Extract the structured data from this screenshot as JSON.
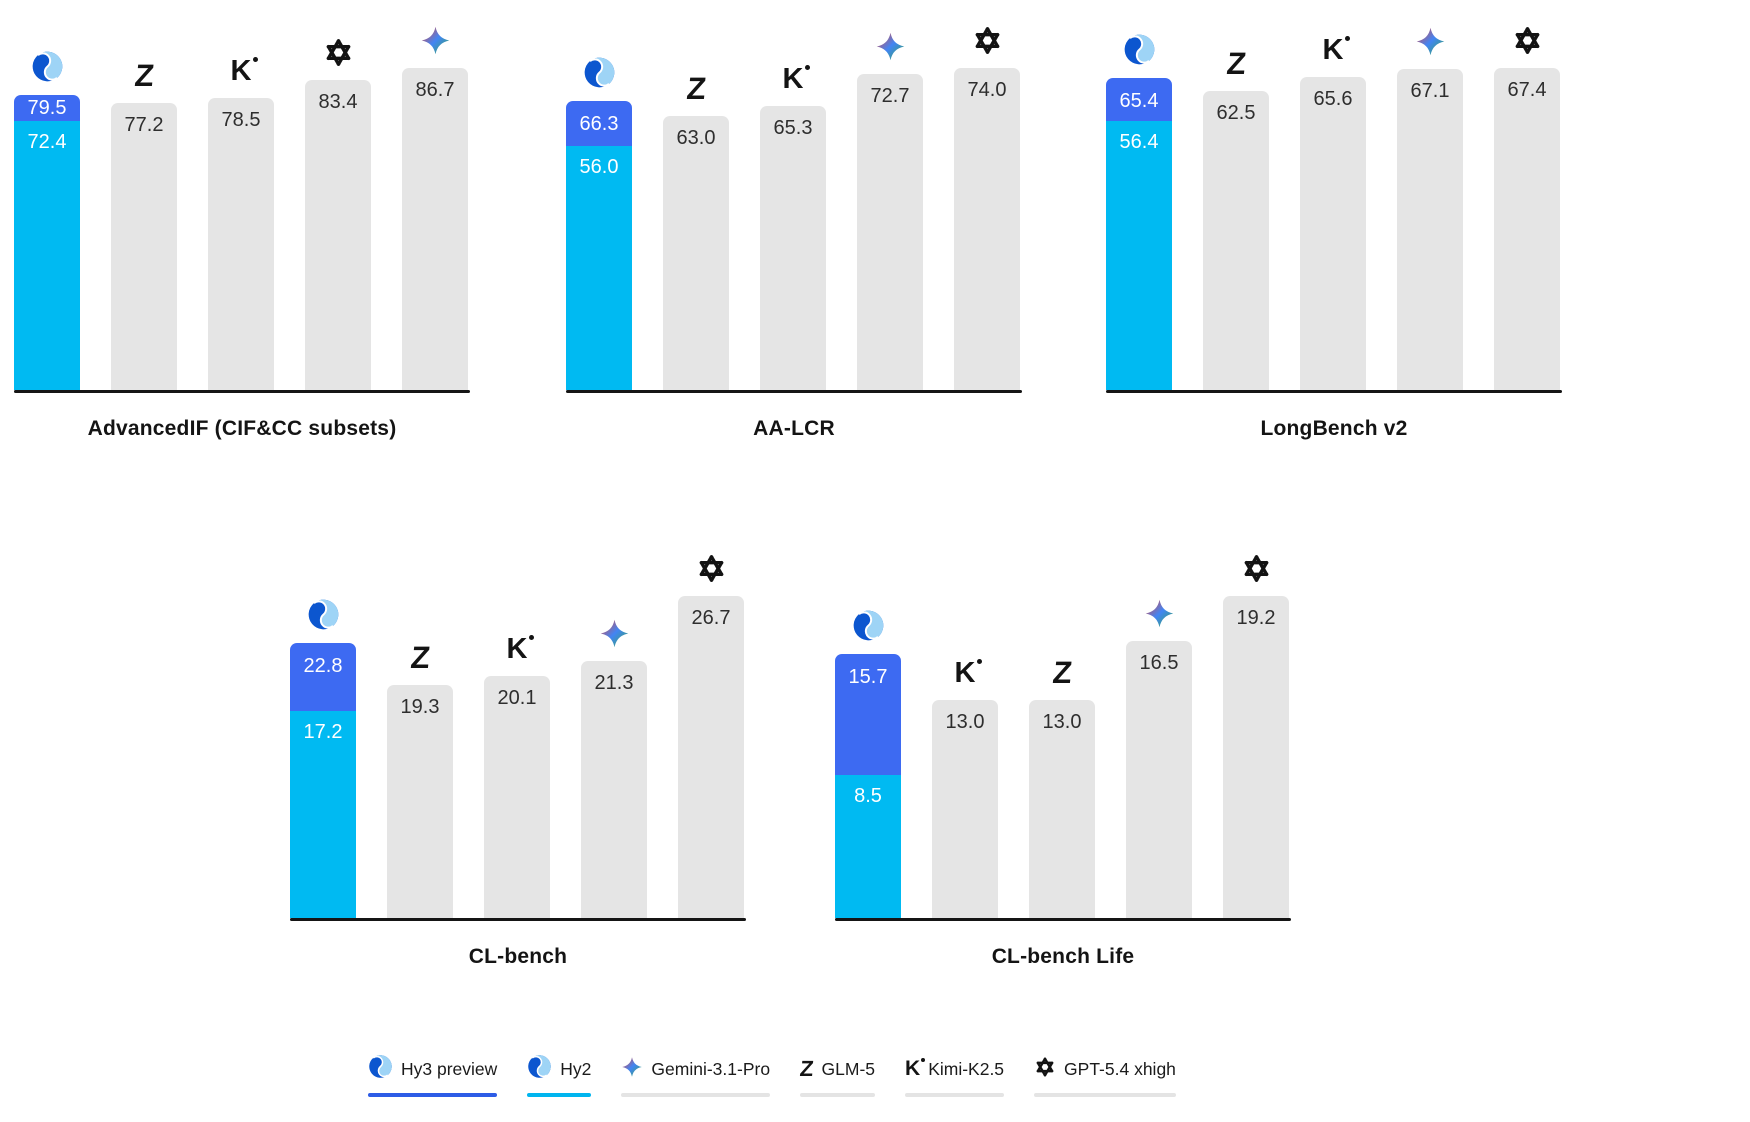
{
  "colors": {
    "hy3_blue": "#3D6AF2",
    "hy2_cyan": "#00BAF2",
    "bar_gray": "#E5E5E5",
    "axis_black": "#151515",
    "label_dark": "#2E2E2E",
    "label_light": "#FFFFFF",
    "legend_hy3_underline": "#2D5CE6",
    "legend_hy2_underline": "#00B5EF",
    "legend_neutral_underline": "#E4E4E4"
  },
  "chart_data": [
    {
      "type": "bar",
      "row": 1,
      "title": "AdvancedIF (CIF&CC subsets)",
      "xlabel": "",
      "ylabel": "",
      "ylim": [
        0,
        86.7
      ],
      "grid": false,
      "legend_position": "bottom",
      "bars": [
        {
          "kind": "stacked",
          "icon": "hy-logo",
          "top": {
            "model": "Hy3 preview",
            "value": 79.5,
            "display": "79.5"
          },
          "bottom": {
            "model": "Hy2",
            "value": 72.4,
            "display": "72.4"
          }
        },
        {
          "kind": "single",
          "icon": "glm-z-icon",
          "model": "GLM-5",
          "value": 77.2,
          "display": "77.2"
        },
        {
          "kind": "single",
          "icon": "kimi-k-icon",
          "model": "Kimi-K2.5",
          "value": 78.5,
          "display": "78.5"
        },
        {
          "kind": "single",
          "icon": "openai-icon",
          "model": "GPT-5.4 xhigh",
          "value": 83.4,
          "display": "83.4"
        },
        {
          "kind": "single",
          "icon": "gemini-sparkle-icon",
          "model": "Gemini-3.1-Pro",
          "value": 86.7,
          "display": "86.7"
        }
      ]
    },
    {
      "type": "bar",
      "row": 1,
      "title": "AA-LCR",
      "xlabel": "",
      "ylabel": "",
      "ylim": [
        0,
        74.0
      ],
      "grid": false,
      "legend_position": "bottom",
      "bars": [
        {
          "kind": "stacked",
          "icon": "hy-logo",
          "top": {
            "model": "Hy3 preview",
            "value": 66.3,
            "display": "66.3"
          },
          "bottom": {
            "model": "Hy2",
            "value": 56.0,
            "display": "56.0"
          }
        },
        {
          "kind": "single",
          "icon": "glm-z-icon",
          "model": "GLM-5",
          "value": 63.0,
          "display": "63.0"
        },
        {
          "kind": "single",
          "icon": "kimi-k-icon",
          "model": "Kimi-K2.5",
          "value": 65.3,
          "display": "65.3"
        },
        {
          "kind": "single",
          "icon": "gemini-sparkle-icon",
          "model": "Gemini-3.1-Pro",
          "value": 72.7,
          "display": "72.7"
        },
        {
          "kind": "single",
          "icon": "openai-icon",
          "model": "GPT-5.4 xhigh",
          "value": 74.0,
          "display": "74.0"
        }
      ]
    },
    {
      "type": "bar",
      "row": 1,
      "title": "LongBench v2",
      "xlabel": "",
      "ylabel": "",
      "ylim": [
        0,
        67.4
      ],
      "grid": false,
      "legend_position": "bottom",
      "bars": [
        {
          "kind": "stacked",
          "icon": "hy-logo",
          "top": {
            "model": "Hy3 preview",
            "value": 65.4,
            "display": "65.4"
          },
          "bottom": {
            "model": "Hy2",
            "value": 56.4,
            "display": "56.4"
          }
        },
        {
          "kind": "single",
          "icon": "glm-z-icon",
          "model": "GLM-5",
          "value": 62.5,
          "display": "62.5"
        },
        {
          "kind": "single",
          "icon": "kimi-k-icon",
          "model": "Kimi-K2.5",
          "value": 65.6,
          "display": "65.6"
        },
        {
          "kind": "single",
          "icon": "gemini-sparkle-icon",
          "model": "Gemini-3.1-Pro",
          "value": 67.1,
          "display": "67.1"
        },
        {
          "kind": "single",
          "icon": "openai-icon",
          "model": "GPT-5.4 xhigh",
          "value": 67.4,
          "display": "67.4"
        }
      ]
    },
    {
      "type": "bar",
      "row": 2,
      "title": "CL-bench",
      "xlabel": "",
      "ylabel": "",
      "ylim": [
        0,
        26.7
      ],
      "grid": false,
      "legend_position": "bottom",
      "bars": [
        {
          "kind": "stacked",
          "icon": "hy-logo",
          "top": {
            "model": "Hy3 preview",
            "value": 22.8,
            "display": "22.8"
          },
          "bottom": {
            "model": "Hy2",
            "value": 17.2,
            "display": "17.2"
          }
        },
        {
          "kind": "single",
          "icon": "glm-z-icon",
          "model": "GLM-5",
          "value": 19.3,
          "display": "19.3"
        },
        {
          "kind": "single",
          "icon": "kimi-k-icon",
          "model": "Kimi-K2.5",
          "value": 20.1,
          "display": "20.1"
        },
        {
          "kind": "single",
          "icon": "gemini-sparkle-icon",
          "model": "Gemini-3.1-Pro",
          "value": 21.3,
          "display": "21.3"
        },
        {
          "kind": "single",
          "icon": "openai-icon",
          "model": "GPT-5.4 xhigh",
          "value": 26.7,
          "display": "26.7"
        }
      ]
    },
    {
      "type": "bar",
      "row": 2,
      "title": "CL-bench Life",
      "xlabel": "",
      "ylabel": "",
      "ylim": [
        0,
        19.2
      ],
      "grid": false,
      "legend_position": "bottom",
      "bars": [
        {
          "kind": "stacked",
          "icon": "hy-logo",
          "top": {
            "model": "Hy3 preview",
            "value": 15.7,
            "display": "15.7"
          },
          "bottom": {
            "model": "Hy2",
            "value": 8.5,
            "display": "8.5"
          }
        },
        {
          "kind": "single",
          "icon": "kimi-k-icon",
          "model": "Kimi-K2.5",
          "value": 13.0,
          "display": "13.0"
        },
        {
          "kind": "single",
          "icon": "glm-z-icon",
          "model": "GLM-5",
          "value": 13.0,
          "display": "13.0"
        },
        {
          "kind": "single",
          "icon": "gemini-sparkle-icon",
          "model": "Gemini-3.1-Pro",
          "value": 16.5,
          "display": "16.5"
        },
        {
          "kind": "single",
          "icon": "openai-icon",
          "model": "GPT-5.4 xhigh",
          "value": 19.2,
          "display": "19.2"
        }
      ]
    }
  ],
  "legend": {
    "items": [
      {
        "label": "Hy3 preview",
        "icon": "hy-logo",
        "underline": "#2D5CE6"
      },
      {
        "label": "Hy2",
        "icon": "hy-logo",
        "underline": "#00B5EF"
      },
      {
        "label": "Gemini-3.1-Pro",
        "icon": "gemini-sparkle-icon",
        "underline": "#E4E4E4"
      },
      {
        "label": "GLM-5",
        "icon": "glm-z-icon",
        "underline": "#E4E4E4"
      },
      {
        "label": "Kimi-K2.5",
        "icon": "kimi-k-icon",
        "underline": "#E4E4E4"
      },
      {
        "label": "GPT-5.4 xhigh",
        "icon": "openai-icon",
        "underline": "#E4E4E4"
      }
    ]
  }
}
